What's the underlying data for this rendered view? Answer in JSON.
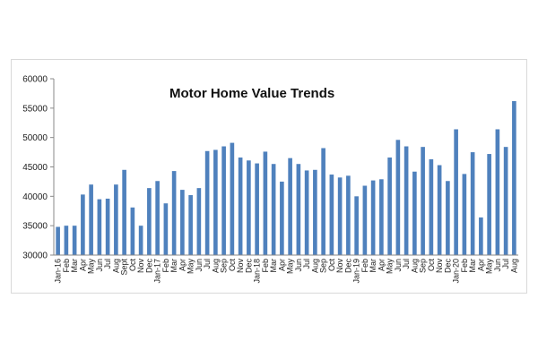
{
  "chart_data": {
    "type": "bar",
    "title": "Motor Home Value Trends",
    "xlabel": "",
    "ylabel": "",
    "ylim": [
      30000,
      60000
    ],
    "yticks": [
      30000,
      35000,
      40000,
      45000,
      50000,
      55000,
      60000
    ],
    "grid": false,
    "legend": "none",
    "bar_color": "#4f81bd",
    "categories": [
      "Jan-16",
      "Feb",
      "Mar",
      "Apr",
      "May",
      "Jun",
      "Jul",
      "Aug",
      "Sept",
      "Oct",
      "Nov",
      "Dec",
      "Jan-17",
      "Feb",
      "Mar",
      "Apr",
      "May",
      "Jun",
      "Jul",
      "Aug",
      "Sep",
      "Oct",
      "Nov",
      "Dec",
      "Jan-18",
      "Feb",
      "Mar",
      "Apr",
      "May",
      "Jun",
      "Jul",
      "Aug",
      "Sep",
      "Oct",
      "Nov",
      "Dec",
      "Jan-19",
      "Feb",
      "Mar",
      "Apr",
      "May",
      "Jun",
      "Jul",
      "Aug",
      "Sep",
      "Oct",
      "Nov",
      "Dec",
      "Jan-20",
      "Feb",
      "Mar",
      "Apr",
      "May",
      "Jun",
      "Jul",
      "Aug"
    ],
    "values": [
      34800,
      35000,
      35000,
      40300,
      42000,
      39500,
      39600,
      42000,
      44500,
      38100,
      35000,
      41400,
      42600,
      38800,
      44300,
      41100,
      40200,
      41400,
      47700,
      47900,
      48500,
      49100,
      46600,
      46100,
      45600,
      47600,
      45500,
      42500,
      46500,
      45500,
      44400,
      44500,
      48200,
      43700,
      43200,
      43500,
      40000,
      41800,
      42700,
      42900,
      46600,
      49600,
      48500,
      44200,
      48400,
      46300,
      45300,
      42600,
      51400,
      43800,
      47500,
      36400,
      47200,
      51400,
      48400,
      56200
    ]
  }
}
